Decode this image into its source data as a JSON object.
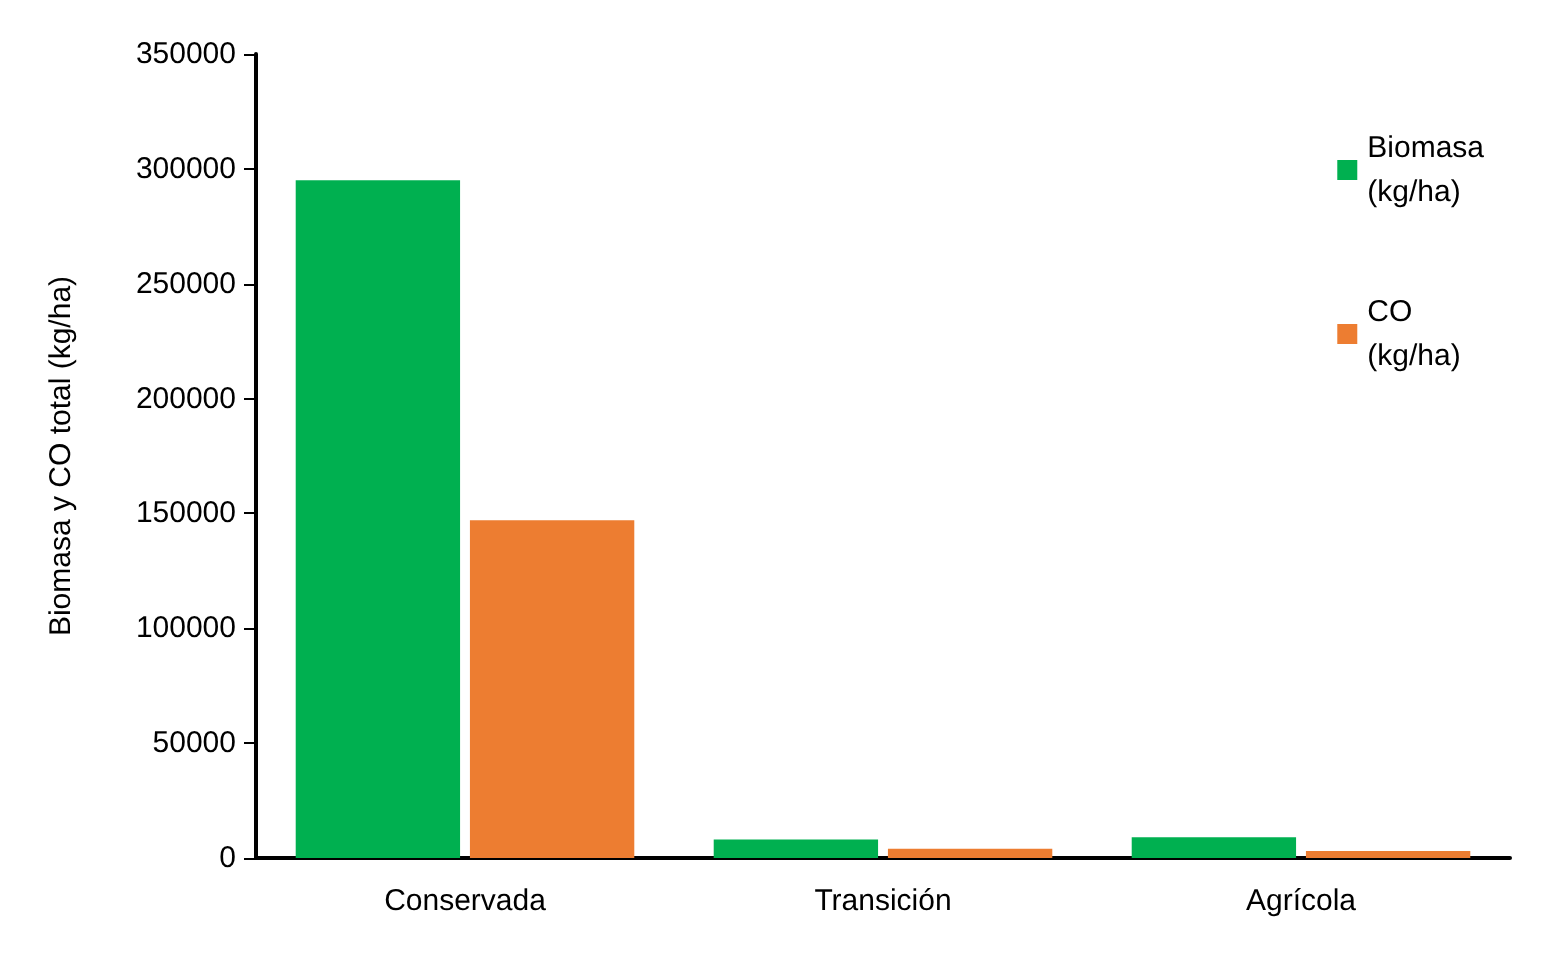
{
  "chart_data": {
    "type": "bar",
    "ylabel": "Biomasa y CO total (kg/ha)",
    "categories": [
      "Conservada",
      "Transición",
      "Agrícola"
    ],
    "series": [
      {
        "name": "Biomasa (kg/ha)",
        "color": "#00b050",
        "values": [
          295000,
          8000,
          9000
        ]
      },
      {
        "name": "CO (kg/ha)",
        "color": "#ed7d31",
        "values": [
          147000,
          4000,
          3000
        ]
      }
    ],
    "ylim": [
      0,
      350000
    ],
    "yticks": [
      0,
      50000,
      100000,
      150000,
      200000,
      250000,
      300000,
      350000
    ],
    "grid": false,
    "legend": "top right"
  }
}
